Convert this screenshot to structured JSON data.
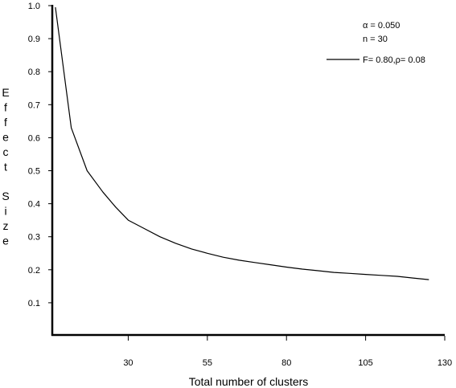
{
  "chart_data": {
    "type": "line",
    "title": "",
    "xlabel": "Total number of clusters",
    "ylabel": "Effect Size",
    "xlim": [
      6,
      130
    ],
    "ylim": [
      0,
      1.0
    ],
    "x_ticks": [
      30,
      55,
      80,
      105,
      130
    ],
    "y_ticks": [
      0.1,
      0.2,
      0.3,
      0.4,
      0.5,
      0.6,
      0.7,
      0.8,
      0.9,
      1.0
    ],
    "y_tick_labels": [
      "0.1",
      "0.2",
      "0.3",
      "0.4",
      "0.5",
      "0.6",
      "0.7",
      "0.8",
      "0.9",
      "1.0"
    ],
    "grid": false,
    "legend_position": "top-right",
    "annotations": [
      "α = 0.050",
      "n = 30"
    ],
    "series": [
      {
        "name": "F= 0.80,ρ= 0.08",
        "color": "#000000",
        "x": [
          7,
          12,
          17,
          22,
          26,
          30,
          35,
          40,
          45,
          50,
          55,
          60,
          65,
          70,
          75,
          80,
          85,
          90,
          95,
          100,
          105,
          110,
          115,
          120,
          125
        ],
        "y": [
          0.995,
          0.63,
          0.5,
          0.435,
          0.39,
          0.35,
          0.325,
          0.3,
          0.28,
          0.263,
          0.25,
          0.238,
          0.229,
          0.222,
          0.215,
          0.208,
          0.202,
          0.197,
          0.192,
          0.189,
          0.186,
          0.183,
          0.18,
          0.175,
          0.17
        ]
      }
    ]
  }
}
